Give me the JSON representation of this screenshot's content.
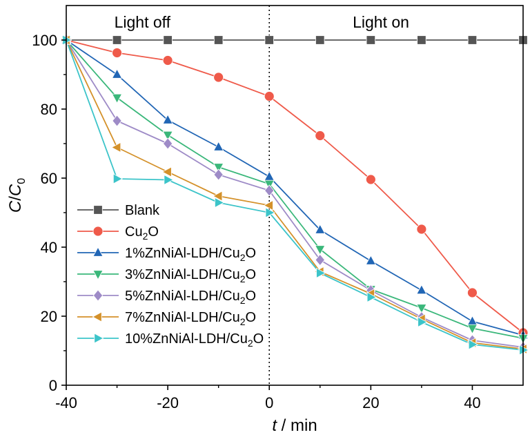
{
  "chart_data": {
    "type": "line",
    "xlabel": {
      "var": "t",
      "rest": " / min"
    },
    "ylabel": {
      "c": "C",
      "slash": "/",
      "c0": "C",
      "sub": "0"
    },
    "xlim": [
      -40,
      50
    ],
    "ylim": [
      0,
      110
    ],
    "xticks": [
      -40,
      -20,
      0,
      20,
      40
    ],
    "yticks": [
      0,
      20,
      40,
      60,
      80,
      100
    ],
    "grid": false,
    "legend_position": "bottom-left",
    "divider_x": 0,
    "regions": [
      {
        "label": "Light off",
        "x": -25
      },
      {
        "label": "Light on",
        "x": 22
      }
    ],
    "x": [
      -40,
      -30,
      -20,
      -10,
      0,
      10,
      20,
      30,
      40,
      50
    ],
    "series": [
      {
        "name": "Blank",
        "name_main": "Blank",
        "name_sub": "",
        "name_tail": "",
        "color": "#555555",
        "marker": "square",
        "values": [
          100,
          100,
          100,
          100,
          100,
          100,
          100,
          100,
          100,
          100
        ]
      },
      {
        "name": "Cu2O",
        "name_main": "Cu",
        "name_sub": "2",
        "name_tail": "O",
        "color": "#ef5a4a",
        "marker": "circle",
        "values": [
          100,
          96.3,
          94.1,
          89.2,
          83.7,
          72.3,
          59.6,
          45.2,
          26.8,
          15.2
        ]
      },
      {
        "name": "1%ZnNiAl-LDH/Cu2O",
        "name_main": "1%ZnNiAl-LDH/Cu",
        "name_sub": "2",
        "name_tail": "O",
        "color": "#2166b5",
        "marker": "triangle-up",
        "values": [
          100,
          90,
          76.8,
          69,
          60.4,
          45,
          36,
          27.5,
          18.5,
          14.5
        ]
      },
      {
        "name": "3%ZnNiAl-LDH/Cu2O",
        "name_main": "3%ZnNiAl-LDH/Cu",
        "name_sub": "2",
        "name_tail": "O",
        "color": "#3ab77a",
        "marker": "triangle-down",
        "values": [
          100,
          83.3,
          72.5,
          63.2,
          58.3,
          39.4,
          27.8,
          22.4,
          16.5,
          13.6
        ]
      },
      {
        "name": "5%ZnNiAl-LDH/Cu2O",
        "name_main": "5%ZnNiAl-LDH/Cu",
        "name_sub": "2",
        "name_tail": "O",
        "color": "#9e8bc7",
        "marker": "diamond",
        "values": [
          100,
          76.6,
          70,
          61,
          56.4,
          36.3,
          27.5,
          19.7,
          13,
          11
        ]
      },
      {
        "name": "7%ZnNiAl-LDH/Cu2O",
        "name_main": "7%ZnNiAl-LDH/Cu",
        "name_sub": "2",
        "name_tail": "O",
        "color": "#d4912a",
        "marker": "triangle-left",
        "values": [
          100,
          68.9,
          61.8,
          54.8,
          52.1,
          32.9,
          26.5,
          19.2,
          12.3,
          10.5
        ]
      },
      {
        "name": "10%ZnNiAl-LDH/Cu2O",
        "name_main": "10%ZnNiAl-LDH/Cu",
        "name_sub": "2",
        "name_tail": "O",
        "color": "#3cc4c9",
        "marker": "triangle-right",
        "values": [
          100,
          59.8,
          59.5,
          52.9,
          50,
          32.5,
          25.5,
          18.3,
          11.8,
          10.2
        ]
      }
    ]
  }
}
